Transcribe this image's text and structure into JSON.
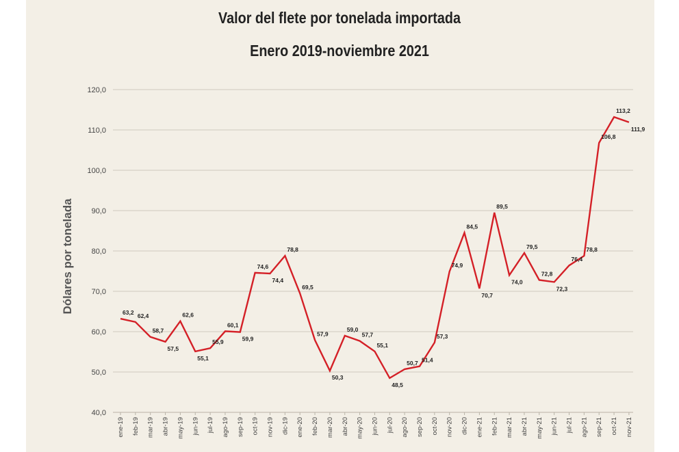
{
  "chart_data": {
    "type": "line",
    "title": "Valor del flete por tonelada importada",
    "subtitle": "Enero 2019-noviembre 2021",
    "ylabel": "Dólares por tonelada",
    "xlabel": "",
    "ylim": [
      40,
      120
    ],
    "yticks": [
      "40,0",
      "50,0",
      "60,0",
      "70,0",
      "80,0",
      "90,0",
      "100,0",
      "110,0",
      "120,0"
    ],
    "grid": true,
    "line_color": "#d42027",
    "categories": [
      "ene-19",
      "feb-19",
      "mar-19",
      "abr-19",
      "may-19",
      "jun-19",
      "jul-19",
      "ago-19",
      "sep-19",
      "oct-19",
      "nov-19",
      "dic-19",
      "ene-20",
      "feb-20",
      "mar-20",
      "abr-20",
      "may-20",
      "jun-20",
      "jul-20",
      "ago-20",
      "sep-20",
      "oct-20",
      "nov-20",
      "dic-20",
      "ene-21",
      "feb-21",
      "mar-21",
      "abr-21",
      "may-21",
      "jun-21",
      "jul-21",
      "ago-21",
      "sep-21",
      "oct-21",
      "nov-21"
    ],
    "series": [
      {
        "values": [
          63.2,
          62.4,
          58.7,
          57.5,
          62.6,
          55.1,
          55.9,
          60.1,
          59.9,
          74.6,
          74.4,
          78.8,
          69.5,
          57.9,
          50.3,
          59.0,
          57.7,
          55.1,
          48.5,
          50.7,
          51.4,
          57.3,
          74.9,
          84.5,
          70.7,
          89.5,
          74.0,
          79.5,
          72.8,
          72.3,
          76.4,
          78.8,
          106.8,
          113.2,
          111.9
        ],
        "labels": [
          "63,2",
          "62,4",
          "58,7",
          "57,5",
          "62,6",
          "55,1",
          "55,9",
          "60,1",
          "59,9",
          "74,6",
          "74,4",
          "78,8",
          "69,5",
          "57,9",
          "50,3",
          "59,0",
          "57,7",
          "55,1",
          "48,5",
          "50,7",
          "51,4",
          "57,3",
          "74,9",
          "84,5",
          "70,7",
          "89,5",
          "74,0",
          "79,5",
          "72,8",
          "72,3",
          "76,4",
          "78,8",
          "106,8",
          "113,2",
          "111,9"
        ]
      }
    ]
  }
}
